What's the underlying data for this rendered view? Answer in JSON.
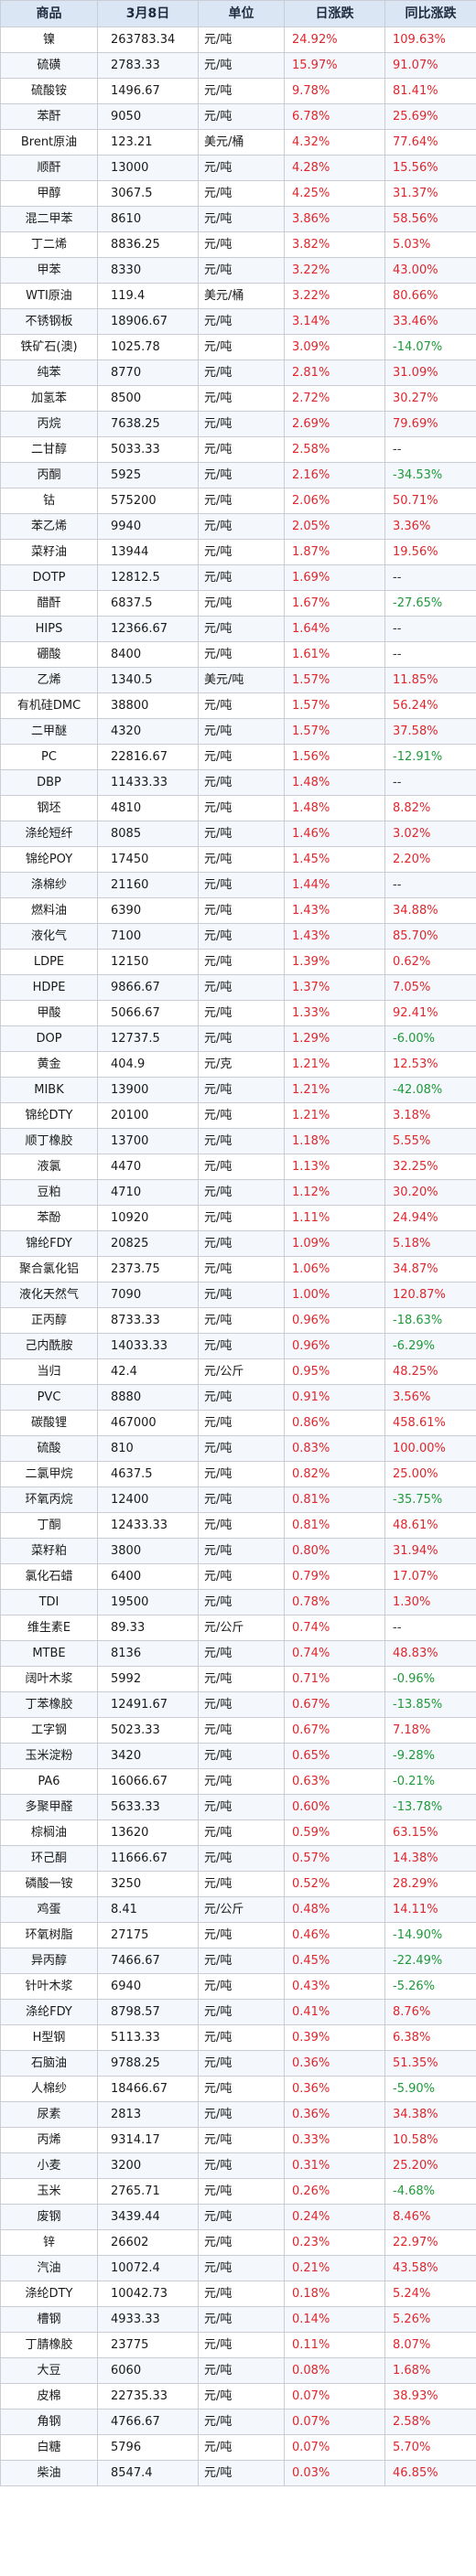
{
  "table": {
    "headers": [
      "商品",
      "3月8日",
      "单位",
      "日涨跌",
      "同比涨跌"
    ],
    "rows": [
      [
        "镍",
        "263783.34",
        "元/吨",
        "24.92%",
        "109.63%"
      ],
      [
        "硫磺",
        "2783.33",
        "元/吨",
        "15.97%",
        "91.07%"
      ],
      [
        "硫酸铵",
        "1496.67",
        "元/吨",
        "9.78%",
        "81.41%"
      ],
      [
        "苯酐",
        "9050",
        "元/吨",
        "6.78%",
        "25.69%"
      ],
      [
        "Brent原油",
        "123.21",
        "美元/桶",
        "4.32%",
        "77.64%"
      ],
      [
        "顺酐",
        "13000",
        "元/吨",
        "4.28%",
        "15.56%"
      ],
      [
        "甲醇",
        "3067.5",
        "元/吨",
        "4.25%",
        "31.37%"
      ],
      [
        "混二甲苯",
        "8610",
        "元/吨",
        "3.86%",
        "58.56%"
      ],
      [
        "丁二烯",
        "8836.25",
        "元/吨",
        "3.82%",
        "5.03%"
      ],
      [
        "甲苯",
        "8330",
        "元/吨",
        "3.22%",
        "43.00%"
      ],
      [
        "WTI原油",
        "119.4",
        "美元/桶",
        "3.22%",
        "80.66%"
      ],
      [
        "不锈钢板",
        "18906.67",
        "元/吨",
        "3.14%",
        "33.46%"
      ],
      [
        "铁矿石(澳)",
        "1025.78",
        "元/吨",
        "3.09%",
        "-14.07%"
      ],
      [
        "纯苯",
        "8770",
        "元/吨",
        "2.81%",
        "31.09%"
      ],
      [
        "加氢苯",
        "8500",
        "元/吨",
        "2.72%",
        "30.27%"
      ],
      [
        "丙烷",
        "7638.25",
        "元/吨",
        "2.69%",
        "79.69%"
      ],
      [
        "二甘醇",
        "5033.33",
        "元/吨",
        "2.58%",
        "--"
      ],
      [
        "丙酮",
        "5925",
        "元/吨",
        "2.16%",
        "-34.53%"
      ],
      [
        "钴",
        "575200",
        "元/吨",
        "2.06%",
        "50.71%"
      ],
      [
        "苯乙烯",
        "9940",
        "元/吨",
        "2.05%",
        "3.36%"
      ],
      [
        "菜籽油",
        "13944",
        "元/吨",
        "1.87%",
        "19.56%"
      ],
      [
        "DOTP",
        "12812.5",
        "元/吨",
        "1.69%",
        "--"
      ],
      [
        "醋酐",
        "6837.5",
        "元/吨",
        "1.67%",
        "-27.65%"
      ],
      [
        "HIPS",
        "12366.67",
        "元/吨",
        "1.64%",
        "--"
      ],
      [
        "硼酸",
        "8400",
        "元/吨",
        "1.61%",
        "--"
      ],
      [
        "乙烯",
        "1340.5",
        "美元/吨",
        "1.57%",
        "11.85%"
      ],
      [
        "有机硅DMC",
        "38800",
        "元/吨",
        "1.57%",
        "56.24%"
      ],
      [
        "二甲醚",
        "4320",
        "元/吨",
        "1.57%",
        "37.58%"
      ],
      [
        "PC",
        "22816.67",
        "元/吨",
        "1.56%",
        "-12.91%"
      ],
      [
        "DBP",
        "11433.33",
        "元/吨",
        "1.48%",
        "--"
      ],
      [
        "钢坯",
        "4810",
        "元/吨",
        "1.48%",
        "8.82%"
      ],
      [
        "涤纶短纤",
        "8085",
        "元/吨",
        "1.46%",
        "3.02%"
      ],
      [
        "锦纶POY",
        "17450",
        "元/吨",
        "1.45%",
        "2.20%"
      ],
      [
        "涤棉纱",
        "21160",
        "元/吨",
        "1.44%",
        "--"
      ],
      [
        "燃料油",
        "6390",
        "元/吨",
        "1.43%",
        "34.88%"
      ],
      [
        "液化气",
        "7100",
        "元/吨",
        "1.43%",
        "85.70%"
      ],
      [
        "LDPE",
        "12150",
        "元/吨",
        "1.39%",
        "0.62%"
      ],
      [
        "HDPE",
        "9866.67",
        "元/吨",
        "1.37%",
        "7.05%"
      ],
      [
        "甲酸",
        "5066.67",
        "元/吨",
        "1.33%",
        "92.41%"
      ],
      [
        "DOP",
        "12737.5",
        "元/吨",
        "1.29%",
        "-6.00%"
      ],
      [
        "黄金",
        "404.9",
        "元/克",
        "1.21%",
        "12.53%"
      ],
      [
        "MIBK",
        "13900",
        "元/吨",
        "1.21%",
        "-42.08%"
      ],
      [
        "锦纶DTY",
        "20100",
        "元/吨",
        "1.21%",
        "3.18%"
      ],
      [
        "顺丁橡胶",
        "13700",
        "元/吨",
        "1.18%",
        "5.55%"
      ],
      [
        "液氯",
        "4470",
        "元/吨",
        "1.13%",
        "32.25%"
      ],
      [
        "豆粕",
        "4710",
        "元/吨",
        "1.12%",
        "30.20%"
      ],
      [
        "苯酚",
        "10920",
        "元/吨",
        "1.11%",
        "24.94%"
      ],
      [
        "锦纶FDY",
        "20825",
        "元/吨",
        "1.09%",
        "5.18%"
      ],
      [
        "聚合氯化铝",
        "2373.75",
        "元/吨",
        "1.06%",
        "34.87%"
      ],
      [
        "液化天然气",
        "7090",
        "元/吨",
        "1.00%",
        "120.87%"
      ],
      [
        "正丙醇",
        "8733.33",
        "元/吨",
        "0.96%",
        "-18.63%"
      ],
      [
        "己内酰胺",
        "14033.33",
        "元/吨",
        "0.96%",
        "-6.29%"
      ],
      [
        "当归",
        "42.4",
        "元/公斤",
        "0.95%",
        "48.25%"
      ],
      [
        "PVC",
        "8880",
        "元/吨",
        "0.91%",
        "3.56%"
      ],
      [
        "碳酸锂",
        "467000",
        "元/吨",
        "0.86%",
        "458.61%"
      ],
      [
        "硫酸",
        "810",
        "元/吨",
        "0.83%",
        "100.00%"
      ],
      [
        "二氯甲烷",
        "4637.5",
        "元/吨",
        "0.82%",
        "25.00%"
      ],
      [
        "环氧丙烷",
        "12400",
        "元/吨",
        "0.81%",
        "-35.75%"
      ],
      [
        "丁酮",
        "12433.33",
        "元/吨",
        "0.81%",
        "48.61%"
      ],
      [
        "菜籽粕",
        "3800",
        "元/吨",
        "0.80%",
        "31.94%"
      ],
      [
        "氯化石蜡",
        "6400",
        "元/吨",
        "0.79%",
        "17.07%"
      ],
      [
        "TDI",
        "19500",
        "元/吨",
        "0.78%",
        "1.30%"
      ],
      [
        "维生素E",
        "89.33",
        "元/公斤",
        "0.74%",
        "--"
      ],
      [
        "MTBE",
        "8136",
        "元/吨",
        "0.74%",
        "48.83%"
      ],
      [
        "阔叶木浆",
        "5992",
        "元/吨",
        "0.71%",
        "-0.96%"
      ],
      [
        "丁苯橡胶",
        "12491.67",
        "元/吨",
        "0.67%",
        "-13.85%"
      ],
      [
        "工字钢",
        "5023.33",
        "元/吨",
        "0.67%",
        "7.18%"
      ],
      [
        "玉米淀粉",
        "3420",
        "元/吨",
        "0.65%",
        "-9.28%"
      ],
      [
        "PA6",
        "16066.67",
        "元/吨",
        "0.63%",
        "-0.21%"
      ],
      [
        "多聚甲醛",
        "5633.33",
        "元/吨",
        "0.60%",
        "-13.78%"
      ],
      [
        "棕榈油",
        "13620",
        "元/吨",
        "0.59%",
        "63.15%"
      ],
      [
        "环己酮",
        "11666.67",
        "元/吨",
        "0.57%",
        "14.38%"
      ],
      [
        "磷酸一铵",
        "3250",
        "元/吨",
        "0.52%",
        "28.29%"
      ],
      [
        "鸡蛋",
        "8.41",
        "元/公斤",
        "0.48%",
        "14.11%"
      ],
      [
        "环氧树脂",
        "27175",
        "元/吨",
        "0.46%",
        "-14.90%"
      ],
      [
        "异丙醇",
        "7466.67",
        "元/吨",
        "0.45%",
        "-22.49%"
      ],
      [
        "针叶木浆",
        "6940",
        "元/吨",
        "0.43%",
        "-5.26%"
      ],
      [
        "涤纶FDY",
        "8798.57",
        "元/吨",
        "0.41%",
        "8.76%"
      ],
      [
        "H型钢",
        "5113.33",
        "元/吨",
        "0.39%",
        "6.38%"
      ],
      [
        "石脑油",
        "9788.25",
        "元/吨",
        "0.36%",
        "51.35%"
      ],
      [
        "人棉纱",
        "18466.67",
        "元/吨",
        "0.36%",
        "-5.90%"
      ],
      [
        "尿素",
        "2813",
        "元/吨",
        "0.36%",
        "34.38%"
      ],
      [
        "丙烯",
        "9314.17",
        "元/吨",
        "0.33%",
        "10.58%"
      ],
      [
        "小麦",
        "3200",
        "元/吨",
        "0.31%",
        "25.20%"
      ],
      [
        "玉米",
        "2765.71",
        "元/吨",
        "0.26%",
        "-4.68%"
      ],
      [
        "废钢",
        "3439.44",
        "元/吨",
        "0.24%",
        "8.46%"
      ],
      [
        "锌",
        "26602",
        "元/吨",
        "0.23%",
        "22.97%"
      ],
      [
        "汽油",
        "10072.4",
        "元/吨",
        "0.21%",
        "43.58%"
      ],
      [
        "涤纶DTY",
        "10042.73",
        "元/吨",
        "0.18%",
        "5.24%"
      ],
      [
        "槽钢",
        "4933.33",
        "元/吨",
        "0.14%",
        "5.26%"
      ],
      [
        "丁腈橡胶",
        "23775",
        "元/吨",
        "0.11%",
        "8.07%"
      ],
      [
        "大豆",
        "6060",
        "元/吨",
        "0.08%",
        "1.68%"
      ],
      [
        "皮棉",
        "22735.33",
        "元/吨",
        "0.07%",
        "38.93%"
      ],
      [
        "角钢",
        "4766.67",
        "元/吨",
        "0.07%",
        "2.58%"
      ],
      [
        "白糖",
        "5796",
        "元/吨",
        "0.07%",
        "5.70%"
      ],
      [
        "柴油",
        "8547.4",
        "元/吨",
        "0.03%",
        "46.85%"
      ]
    ]
  },
  "colors": {
    "up": "#e0262c",
    "down": "#1f9a3a",
    "header_bg": "#dbe6f4"
  }
}
